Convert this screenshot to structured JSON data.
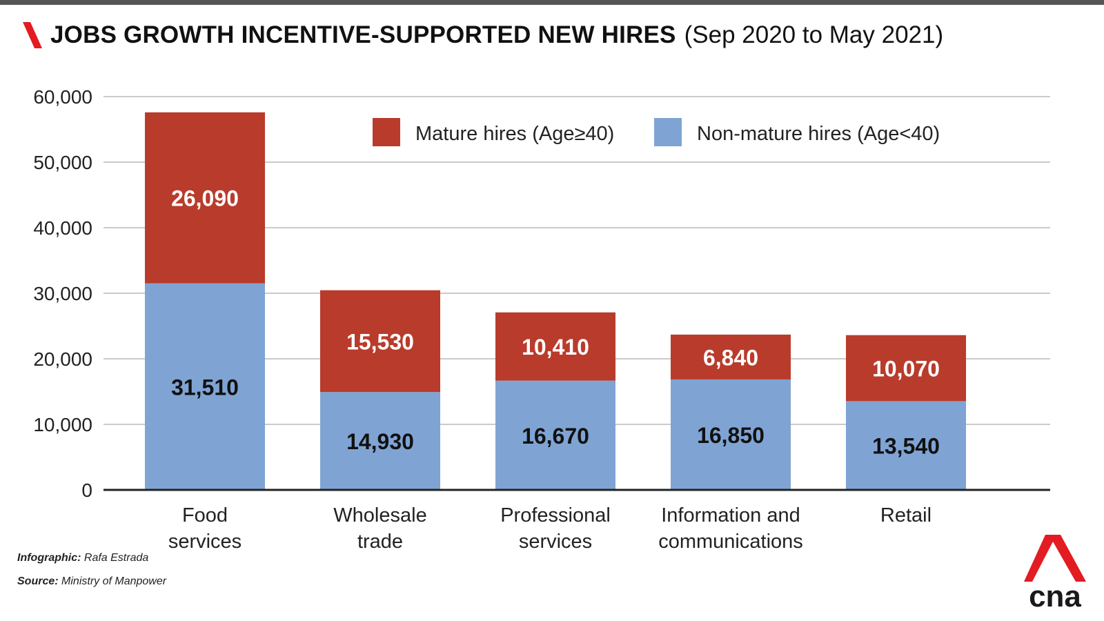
{
  "header": {
    "title": "JOBS GROWTH INCENTIVE-SUPPORTED NEW HIRES",
    "subtitle": "(Sep 2020 to May 2021)"
  },
  "credits": {
    "infographic_label": "Infographic:",
    "infographic_value": "Rafa Estrada",
    "source_label": "Source:",
    "source_value": "Ministry of Manpower"
  },
  "logo": {
    "text": "cna",
    "color": "#e31b23"
  },
  "colors": {
    "mature": "#b93b2c",
    "non_mature": "#7fa4d4",
    "accent_red": "#e31b23"
  },
  "chart_data": {
    "type": "bar",
    "stacked": true,
    "categories": [
      [
        "Food",
        "services"
      ],
      [
        "Wholesale",
        "trade"
      ],
      [
        "Professional",
        "services"
      ],
      [
        "Information and",
        "communications"
      ],
      [
        "Retail"
      ]
    ],
    "series": [
      {
        "name": "Non-mature hires (Age<40)",
        "color": "#7fa4d4",
        "values": [
          31510,
          14930,
          16670,
          16850,
          13540
        ],
        "labels": [
          "31,510",
          "14,930",
          "16,670",
          "16,850",
          "13,540"
        ],
        "label_color": "#111111"
      },
      {
        "name": "Mature hires (Age≥40)",
        "color": "#b93b2c",
        "values": [
          26090,
          15530,
          10410,
          6840,
          10070
        ],
        "labels": [
          "26,090",
          "15,530",
          "10,410",
          "6,840",
          "10,070"
        ],
        "label_color": "#ffffff"
      }
    ],
    "ylim": [
      0,
      60000
    ],
    "yticks": [
      0,
      10000,
      20000,
      30000,
      40000,
      50000,
      60000
    ],
    "ytick_labels": [
      "0",
      "10,000",
      "20,000",
      "30,000",
      "40,000",
      "50,000",
      "60,000"
    ],
    "legend": {
      "placement": "top-right",
      "order": [
        "Mature hires (Age≥40)",
        "Non-mature hires (Age<40)"
      ]
    },
    "grid": true
  }
}
